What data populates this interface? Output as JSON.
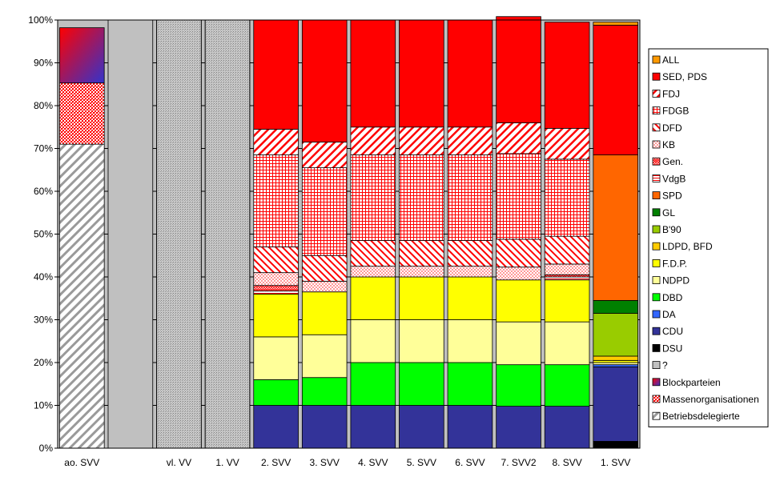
{
  "chart_data": {
    "type": "bar",
    "stacked": true,
    "normalized": true,
    "title": "",
    "xlabel": "",
    "ylabel": "",
    "ylim": [
      0,
      100
    ],
    "y_ticks": [
      "0%",
      "10%",
      "20%",
      "30%",
      "40%",
      "50%",
      "60%",
      "70%",
      "80%",
      "90%",
      "100%"
    ],
    "grid": true,
    "legend_position": "right",
    "categories": [
      "ao. SVV",
      "",
      "vl. VV",
      "1. VV",
      "2. SVV",
      "3. SVV",
      "4. SVV",
      "5. SVV",
      "6. SVV",
      "7. SVV2",
      "8. SVV",
      "1. SVV"
    ],
    "series": [
      {
        "name": "Betriebsdelegierte",
        "color": "#c0c0c0",
        "pattern": "diag-grey",
        "values": [
          71,
          0,
          0,
          0,
          0,
          0,
          0,
          0,
          0,
          0,
          0,
          0
        ]
      },
      {
        "name": "Massenorganisationen",
        "color": "#ff0000",
        "pattern": "cross-red",
        "values": [
          14.3,
          0,
          0,
          0,
          0,
          0,
          0,
          0,
          0,
          0,
          0,
          0
        ]
      },
      {
        "name": "Blockparteien",
        "color": "#cc0066",
        "pattern": "gradient",
        "values": [
          12.9,
          0,
          0,
          0,
          0,
          0,
          0,
          0,
          0,
          0,
          0,
          0
        ]
      },
      {
        "name": "?",
        "color": "#c0c0c0",
        "pattern": "solid",
        "values": [
          0,
          100,
          0,
          0,
          0,
          0,
          0,
          0,
          0,
          0,
          0,
          0
        ]
      },
      {
        "name": "DSU",
        "color": "#000000",
        "pattern": "solid",
        "values": [
          0,
          0,
          0,
          0,
          0,
          0,
          0,
          0,
          0,
          0,
          0,
          1.6
        ]
      },
      {
        "name": "CDU",
        "color": "#333399",
        "pattern": "solid",
        "values": [
          0,
          0,
          0,
          0,
          10,
          10,
          10,
          10,
          10,
          9.8,
          9.8,
          17.4
        ]
      },
      {
        "name": "DA",
        "color": "#3366ff",
        "pattern": "solid",
        "values": [
          0,
          0,
          0,
          0,
          0,
          0,
          0,
          0,
          0,
          0,
          0,
          0.5
        ]
      },
      {
        "name": "DBD",
        "color": "#00ff00",
        "pattern": "solid",
        "values": [
          0,
          0,
          0,
          0,
          6,
          6.5,
          10,
          10,
          10,
          9.7,
          9.7,
          0
        ]
      },
      {
        "name": "NDPD",
        "color": "#ffff99",
        "pattern": "solid",
        "values": [
          0,
          0,
          0,
          0,
          10,
          10,
          10,
          10,
          10,
          10,
          10,
          0.5
        ]
      },
      {
        "name": "F.D.P.",
        "color": "#ffff00",
        "pattern": "solid",
        "values": [
          0,
          0,
          0,
          0,
          10,
          10,
          10,
          10,
          10,
          9.8,
          9.8,
          0.5
        ]
      },
      {
        "name": "LDPD, BFD",
        "color": "#ffcc00",
        "pattern": "solid",
        "values": [
          0,
          0,
          0,
          0,
          0,
          0,
          0,
          0,
          0,
          0,
          0,
          1
        ]
      },
      {
        "name": "B'90",
        "color": "#99cc00",
        "pattern": "solid",
        "values": [
          0,
          0,
          0,
          0,
          0,
          0,
          0,
          0,
          0,
          0,
          0,
          10
        ]
      },
      {
        "name": "GL",
        "color": "#008000",
        "pattern": "solid",
        "values": [
          0,
          0,
          0,
          0,
          0,
          0,
          0,
          0,
          0,
          0,
          0,
          3
        ]
      },
      {
        "name": "SPD",
        "color": "#ff6600",
        "pattern": "solid",
        "values": [
          0,
          0,
          0,
          0,
          0,
          0,
          0,
          0,
          0,
          0,
          0,
          34
        ]
      },
      {
        "name": "VdgB",
        "color": "#ff0000",
        "pattern": "hstripe-red",
        "values": [
          0,
          0,
          0,
          0,
          0.7,
          0,
          0,
          0,
          0,
          0,
          0.7,
          0
        ]
      },
      {
        "name": "Gen.",
        "color": "#ff0000",
        "pattern": "zigzag-red",
        "values": [
          0,
          0,
          0,
          0,
          1.3,
          0,
          0,
          0,
          0,
          0,
          0.5,
          0
        ]
      },
      {
        "name": "KB",
        "color": "#ff9999",
        "pattern": "dots-red",
        "values": [
          0,
          0,
          0,
          0,
          3,
          2.5,
          2.5,
          2.5,
          2.5,
          3,
          2.5,
          0
        ]
      },
      {
        "name": "DFD",
        "color": "#ff0000",
        "pattern": "diag-red",
        "values": [
          0,
          0,
          0,
          0,
          6,
          6,
          6,
          6,
          6,
          6.5,
          6.5,
          0
        ]
      },
      {
        "name": "FDGB",
        "color": "#ff0000",
        "pattern": "grid-red",
        "values": [
          0,
          0,
          0,
          0,
          21.5,
          20.5,
          20,
          20,
          20,
          20,
          18,
          0
        ]
      },
      {
        "name": "FDJ",
        "color": "#ff0000",
        "pattern": "diag2-red",
        "values": [
          0,
          0,
          0,
          0,
          6,
          6,
          6.5,
          6.5,
          6.5,
          7.2,
          7.2,
          0
        ]
      },
      {
        "name": "SED, PDS",
        "color": "#ff0000",
        "pattern": "solid",
        "values": [
          0,
          0,
          0,
          0,
          25.5,
          28.5,
          25,
          25,
          25,
          24.8,
          24.8,
          30.3
        ]
      },
      {
        "name": "ALL",
        "color": "#ff9900",
        "pattern": "solid",
        "values": [
          0,
          0,
          0,
          0,
          0,
          0,
          0,
          0,
          0,
          0,
          0,
          0.7
        ]
      }
    ],
    "special_bars": [
      {
        "index": 2,
        "pattern": "grey-dots",
        "value": 100
      },
      {
        "index": 3,
        "pattern": "grey-dots",
        "value": 100
      }
    ],
    "legend_order": [
      "ALL",
      "SED, PDS",
      "FDJ",
      "FDGB",
      "DFD",
      "KB",
      "Gen.",
      "VdgB",
      "SPD",
      "GL",
      "B'90",
      "LDPD, BFD",
      "F.D.P.",
      "NDPD",
      "DBD",
      "DA",
      "CDU",
      "DSU",
      "?",
      "Blockparteien",
      "Massenorganisationen",
      "Betriebsdelegierte"
    ]
  }
}
